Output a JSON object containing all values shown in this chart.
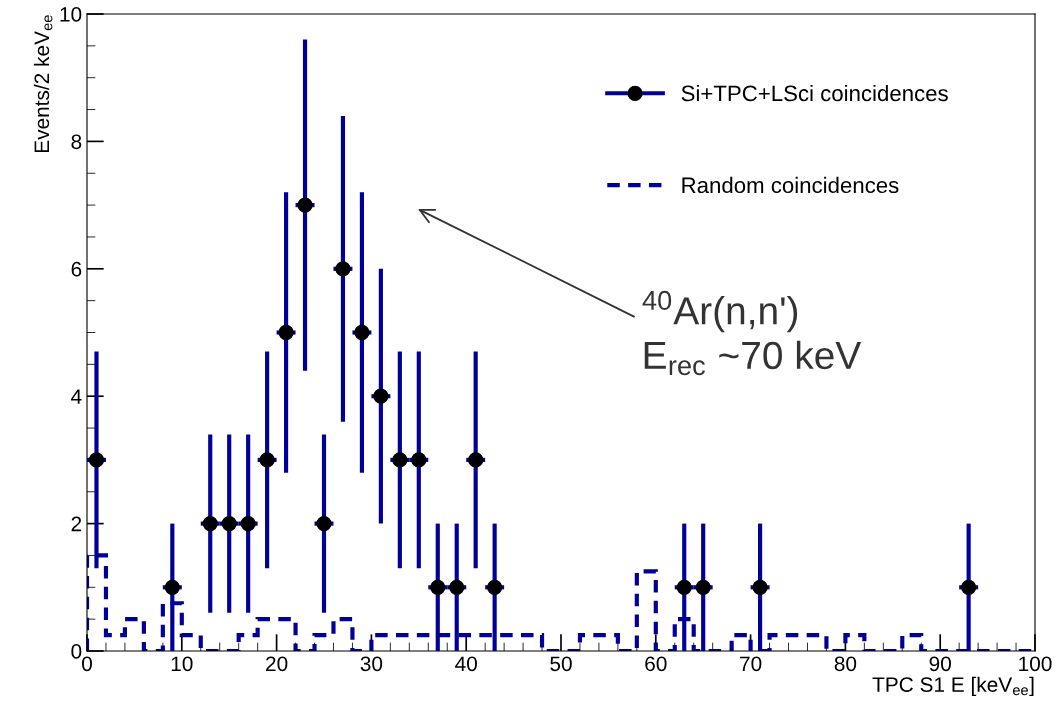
{
  "chart_data": {
    "type": "scatter",
    "xlabel": "TPC S1 E [keV$_{ee}$]",
    "ylabel": "Events/2 keV$_{ee}$",
    "xlim": [
      0,
      100
    ],
    "xticks": [
      0,
      10,
      20,
      30,
      40,
      50,
      60,
      70,
      80,
      90,
      100
    ],
    "ylim": [
      0,
      10
    ],
    "yticks": [
      0,
      2,
      4,
      6,
      8,
      10
    ],
    "grid": false,
    "legend": "top right",
    "series": [
      {
        "name": "Si+TPC+LSci coincidences",
        "color": "#000099",
        "marker": "circle",
        "colors": [
          "#000000",
          "#000000",
          "#000000",
          "#000000",
          "#000000",
          "#000000",
          "#000000",
          "#000000",
          "#000000",
          "#000000",
          "#000000",
          "#000000",
          "#000000",
          "#000000",
          "#000000",
          "#000000",
          "#000000",
          "#000000",
          "#000000",
          "#000000",
          "#000000",
          "#000000"
        ],
        "x": [
          1,
          9,
          13,
          15,
          17,
          19,
          21,
          23,
          25,
          27,
          29,
          31,
          33,
          35,
          37,
          39,
          41,
          43,
          63,
          65,
          71,
          93
        ],
        "values": [
          3,
          1,
          2,
          2,
          2,
          3,
          5,
          7,
          2,
          6,
          5,
          4,
          3,
          3,
          1,
          1,
          3,
          1,
          1,
          1,
          1,
          1
        ],
        "errors": [
          [
            1.3,
            4.7
          ],
          [
            0,
            2
          ],
          [
            0.6,
            3.4
          ],
          [
            0.6,
            3.4
          ],
          [
            0.6,
            3.4
          ],
          [
            1.3,
            4.7
          ],
          [
            2.8,
            7.2
          ],
          [
            4.4,
            9.6
          ],
          [
            0.6,
            3.4
          ],
          [
            3.6,
            8.4
          ],
          [
            2.8,
            7.2
          ],
          [
            2,
            6
          ],
          [
            1.3,
            4.7
          ],
          [
            1.3,
            4.7
          ],
          [
            0,
            2
          ],
          [
            0,
            2
          ],
          [
            1.3,
            4.7
          ],
          [
            0,
            2
          ],
          [
            0,
            2
          ],
          [
            0,
            2
          ],
          [
            0,
            2
          ],
          [
            0,
            2
          ]
        ],
        "xerrors": [
          1,
          1,
          1,
          1,
          1,
          1,
          1,
          1,
          1,
          1,
          1,
          1,
          1,
          1,
          1,
          1,
          1,
          1,
          1,
          1,
          1,
          1
        ]
      },
      {
        "name": "Random coincidences",
        "type": "histogram",
        "color": "#000099",
        "line_style": "dashed",
        "bins": [
          0,
          2,
          4,
          6,
          8,
          10,
          12,
          14,
          16,
          18,
          20,
          22,
          24,
          26,
          28,
          30,
          32,
          34,
          36,
          38,
          40,
          42,
          44,
          46,
          48,
          50,
          52,
          54,
          56,
          58,
          60,
          62,
          64,
          66,
          68,
          70,
          72,
          74,
          76,
          78,
          80,
          82,
          84,
          86,
          88,
          90,
          92,
          94,
          96,
          98,
          100
        ],
        "values": [
          1.5,
          0.25,
          0.5,
          0,
          0.75,
          0.25,
          0,
          0,
          0.25,
          0.5,
          0.5,
          0,
          0.25,
          0.5,
          0,
          0.25,
          0.25,
          0.25,
          0.25,
          0.25,
          0.25,
          0.25,
          0.25,
          0.25,
          0,
          0,
          0.25,
          0.25,
          0,
          1.25,
          0,
          0.5,
          0,
          0,
          0.25,
          0,
          0.25,
          0.25,
          0.25,
          0,
          0.25,
          0,
          0,
          0.25,
          0,
          0,
          0,
          0,
          0,
          0
        ]
      }
    ],
    "annotations": [
      "$^{40}$Ar(n,n')\nE$_{rec}$ ~70 keV"
    ]
  }
}
